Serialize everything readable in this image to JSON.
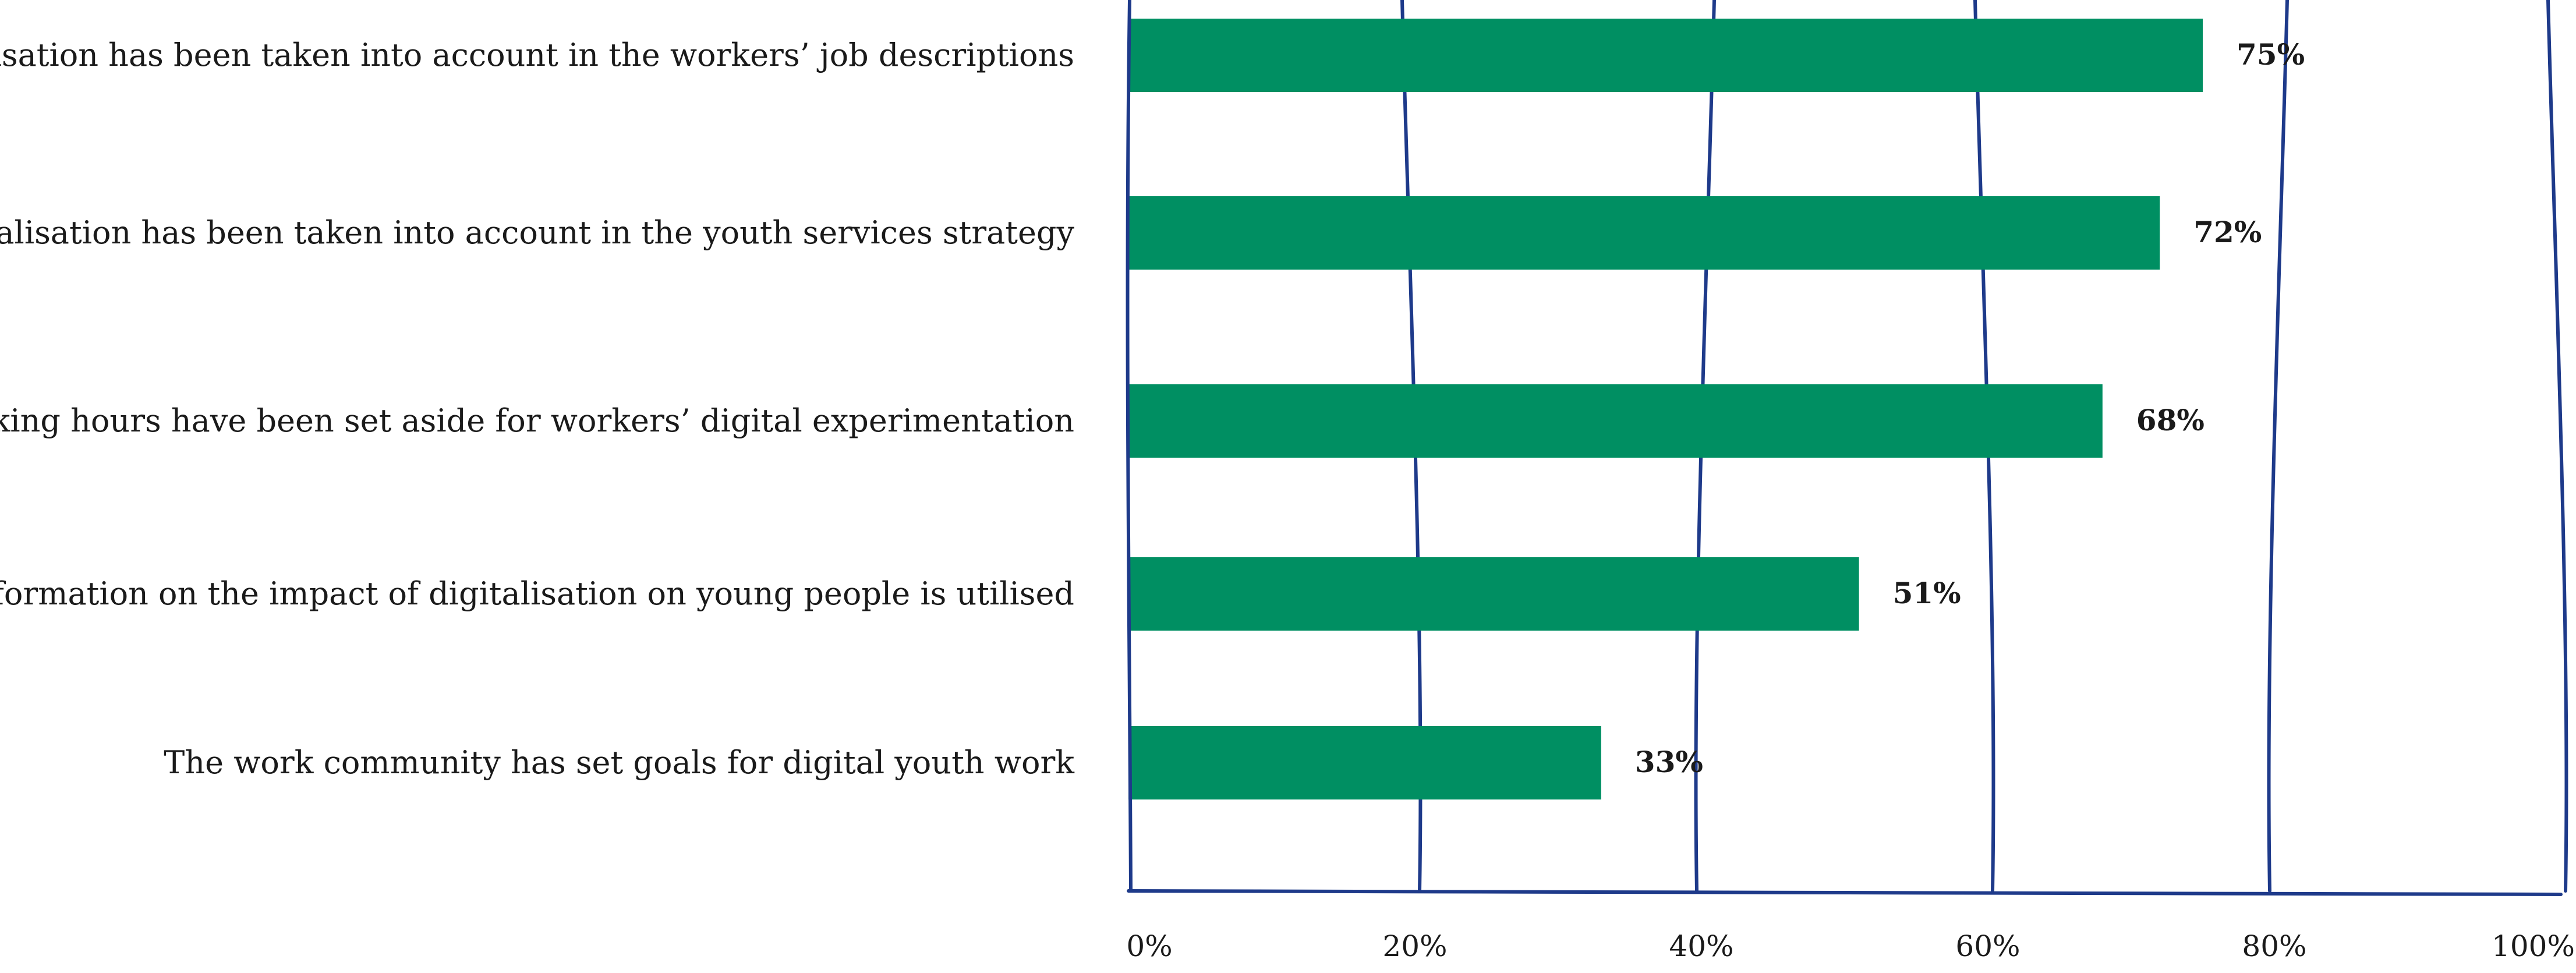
{
  "chart_data": {
    "type": "bar",
    "orientation": "horizontal",
    "categories": [
      "Digitalisation has been taken into account in the workers’ job descriptions",
      "Digitalisation has been taken into account in the youth services strategy",
      "Working hours have been set aside for workers’ digital experimentation",
      "Information on the impact of digitalisation on young people is utilised",
      "The work community has set goals for digital youth work"
    ],
    "values": [
      75,
      72,
      68,
      51,
      33
    ],
    "value_labels": [
      "75%",
      "72%",
      "68%",
      "51%",
      "33%"
    ],
    "xlim": [
      0,
      100
    ],
    "x_ticks": [
      0,
      20,
      40,
      60,
      80,
      100
    ],
    "x_tick_labels": [
      "0%",
      "20%",
      "40%",
      "60%",
      "80%",
      "100%"
    ],
    "title": "",
    "xlabel": "",
    "ylabel": "",
    "grid": true,
    "legend": "none",
    "colors": {
      "bar": "#008f62",
      "grid": "#1e3a8a",
      "text": "#1a1a1a"
    }
  }
}
